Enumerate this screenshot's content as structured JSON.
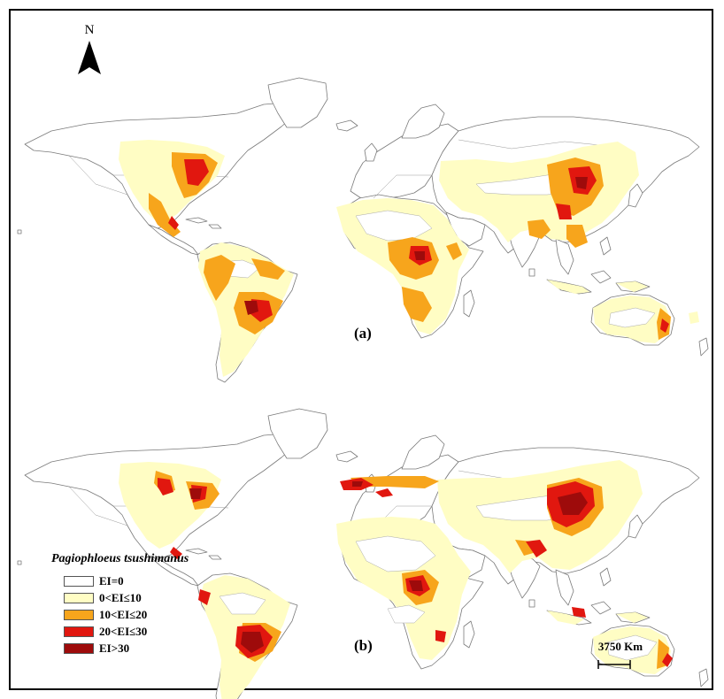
{
  "figure": {
    "panels": [
      {
        "label": "(a)"
      },
      {
        "label": "(b)"
      }
    ],
    "north_arrow": {
      "label": "N"
    },
    "scale_bar": {
      "label": "3750  Km"
    },
    "legend": {
      "title": "Pagiophloeus tsushimanus",
      "items": [
        {
          "label": "EI=0",
          "color": "#ffffff"
        },
        {
          "label": "0<EI≤10",
          "color": "#fffdc4"
        },
        {
          "label": "10<EI≤20",
          "color": "#f7a51c"
        },
        {
          "label": "20<EI≤30",
          "color": "#e1170f"
        },
        {
          "label": "EI>30",
          "color": "#9e0b0b"
        }
      ]
    }
  }
}
